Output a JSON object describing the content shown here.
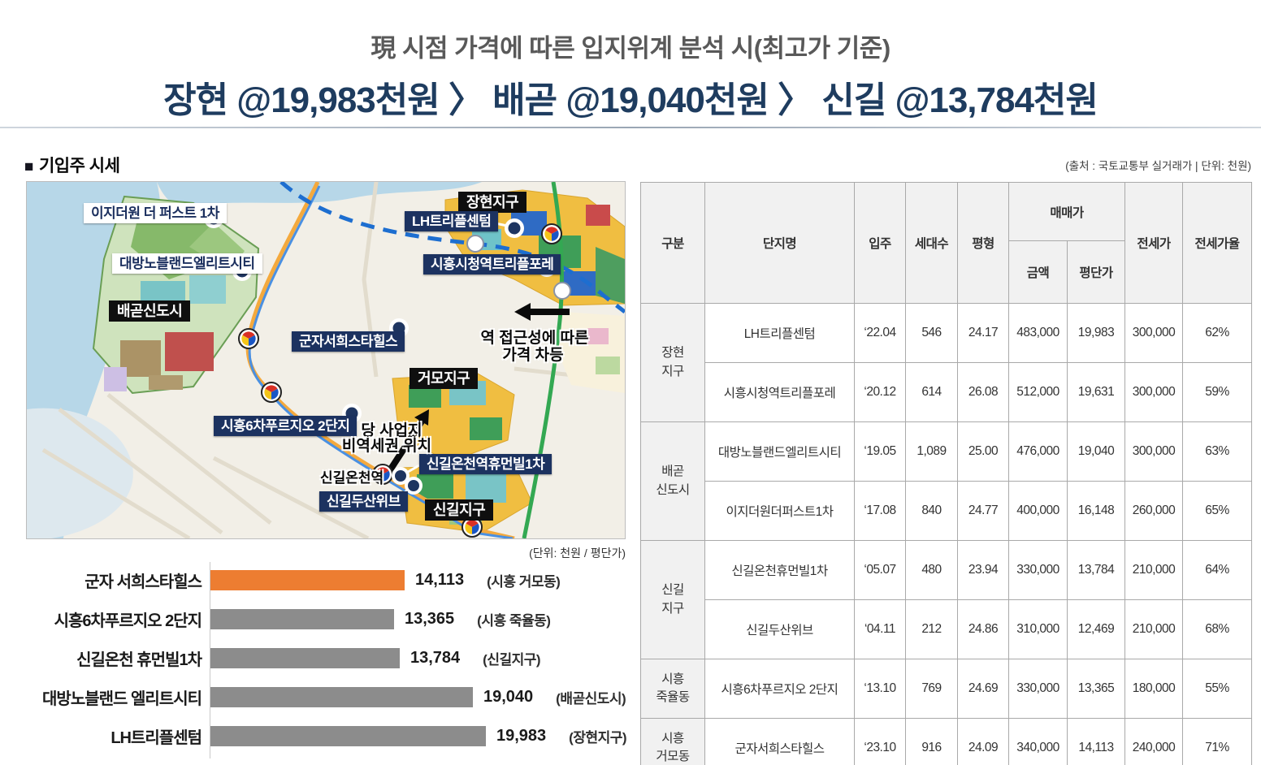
{
  "title": {
    "line1": "現 시점 가격에 따른 입지위계 분석 시(최고가 기준)",
    "line2": "장현 @19,983천원 〉 배곧 @19,040천원 〉 신길 @13,784천원"
  },
  "section": {
    "bullet": "■",
    "title": "기입주 시세"
  },
  "source_note": "(출처 : 국토교통부 실거래가 | 단위: 천원)",
  "map": {
    "complexes": {
      "ez1": "이지더원 더 퍼스트 1차",
      "daebang": "대방노블랜드엘리트시티",
      "lh": "LH트리플센텀",
      "triplefore": "시흥시청역트리플포레",
      "gunja": "군자서희스타힐스",
      "prugio": "시흥6차푸르지오 2단지",
      "humanville": "신길온천역휴먼빌1차",
      "doosan": "신길두산위브"
    },
    "districts": {
      "baegot": "배곧신도시",
      "janghyeon": "장현지구",
      "geomo": "거모지구",
      "singil": "신길지구"
    },
    "station": "신길온천역",
    "annotation_access_1": "역 접근성에 따른",
    "annotation_access_2": "가격 차등",
    "annotation_site_1": "당 사업지",
    "annotation_site_2": "비역세권 위치"
  },
  "chart_data": {
    "type": "bar",
    "orientation": "horizontal",
    "unit_label": "(단위: 천원 / 평단가)",
    "categories": [
      "군자 서희스타힐스",
      "시흥6차푸르지오 2단지",
      "신길온천 휴먼빌1차",
      "대방노블랜드 엘리트시티",
      "LH트리플센텀"
    ],
    "values": [
      14113,
      13365,
      13784,
      19040,
      19983
    ],
    "value_labels": [
      "14,113",
      "13,365",
      "13,784",
      "19,040",
      "19,983"
    ],
    "region_notes": [
      "(시흥 거모동)",
      "(시흥 죽율동)",
      "(신길지구)",
      "(배곧신도시)",
      "(장현지구)"
    ],
    "bar_colors": [
      "#ED7D31",
      "#8C8C8C",
      "#8C8C8C",
      "#8C8C8C",
      "#8C8C8C"
    ],
    "xlim": [
      0,
      21000
    ],
    "legend": "none",
    "grid": "off"
  },
  "table": {
    "header": {
      "gubun": "구분",
      "name": "단지명",
      "movein": "입주",
      "households": "세대수",
      "pyeong": "평형",
      "maemae": "매매가",
      "amount": "금액",
      "perpyeong": "평단가",
      "jeonse": "전세가",
      "ratio": "전세가율"
    },
    "groups": [
      {
        "label": "장현\n지구"
      },
      {
        "label": "배곧\n신도시"
      },
      {
        "label": "신길\n지구"
      },
      {
        "label": "시흥\n죽율동"
      },
      {
        "label": "시흥\n거모동"
      }
    ],
    "rows": [
      {
        "name": "LH트리플센텀",
        "movein": "‘22.04",
        "households": "546",
        "pyeong": "24.17",
        "amount": "483,000",
        "perpyeong": "19,983",
        "jeonse": "300,000",
        "ratio": "62%"
      },
      {
        "name": "시흥시청역트리플포레",
        "movein": "‘20.12",
        "households": "614",
        "pyeong": "26.08",
        "amount": "512,000",
        "perpyeong": "19,631",
        "jeonse": "300,000",
        "ratio": "59%"
      },
      {
        "name": "대방노블랜드엘리트시티",
        "movein": "‘19.05",
        "households": "1,089",
        "pyeong": "25.00",
        "amount": "476,000",
        "perpyeong": "19,040",
        "jeonse": "300,000",
        "ratio": "63%"
      },
      {
        "name": "이지더원더퍼스트1차",
        "movein": "‘17.08",
        "households": "840",
        "pyeong": "24.77",
        "amount": "400,000",
        "perpyeong": "16,148",
        "jeonse": "260,000",
        "ratio": "65%"
      },
      {
        "name": "신길온천휴먼빌1차",
        "movein": "‘05.07",
        "households": "480",
        "pyeong": "23.94",
        "amount": "330,000",
        "perpyeong": "13,784",
        "jeonse": "210,000",
        "ratio": "64%"
      },
      {
        "name": "신길두산위브",
        "movein": "‘04.11",
        "households": "212",
        "pyeong": "24.86",
        "amount": "310,000",
        "perpyeong": "12,469",
        "jeonse": "210,000",
        "ratio": "68%"
      },
      {
        "name": "시흥6차푸르지오 2단지",
        "movein": "‘13.10",
        "households": "769",
        "pyeong": "24.69",
        "amount": "330,000",
        "perpyeong": "13,365",
        "jeonse": "180,000",
        "ratio": "55%"
      },
      {
        "name": "군자서희스타힐스",
        "movein": "‘23.10",
        "households": "916",
        "pyeong": "24.09",
        "amount": "340,000",
        "perpyeong": "14,113",
        "jeonse": "240,000",
        "ratio": "71%"
      }
    ]
  }
}
